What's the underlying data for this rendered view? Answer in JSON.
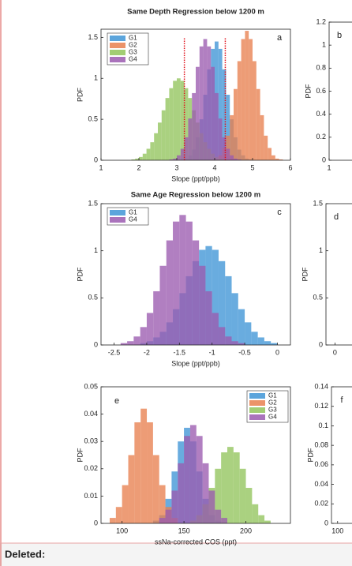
{
  "chart_data": [
    {
      "type": "histogram",
      "title": "Same Depth Regression below 1200 m",
      "panel_label": "a",
      "xlabel": "Slope (ppt/ppb)",
      "ylabel": "PDF",
      "xlim": [
        1,
        6
      ],
      "ylim": [
        0,
        1.6
      ],
      "xticks": [
        1,
        2,
        3,
        4,
        5,
        6
      ],
      "yticks": [
        0,
        0.5,
        1,
        1.5
      ],
      "legend": "northwest",
      "vlines": [
        3.2,
        4.28
      ],
      "vline_color": "#e0101a",
      "bins": [
        1,
        1.1,
        1.2,
        1.3,
        1.4,
        1.5,
        1.6,
        1.7,
        1.8,
        1.9,
        2,
        2.1,
        2.2,
        2.3,
        2.4,
        2.5,
        2.6,
        2.7,
        2.8,
        2.9,
        3,
        3.1,
        3.2,
        3.3,
        3.4,
        3.5,
        3.6,
        3.7,
        3.8,
        3.9,
        4,
        4.1,
        4.2,
        4.3,
        4.4,
        4.5,
        4.6,
        4.7,
        4.8,
        4.9,
        5,
        5.1,
        5.2,
        5.3,
        5.4,
        5.5,
        5.6,
        5.7,
        5.8,
        5.9,
        6
      ],
      "series": [
        {
          "name": "G1",
          "color": "#3f95d6",
          "values": [
            0,
            0,
            0,
            0,
            0,
            0,
            0,
            0,
            0,
            0,
            0,
            0,
            0,
            0,
            0,
            0,
            0,
            0,
            0,
            0,
            0,
            0.01,
            0.02,
            0.06,
            0.13,
            0.28,
            0.5,
            0.8,
            1.11,
            1.36,
            1.45,
            1.36,
            1.11,
            0.8,
            0.5,
            0.28,
            0.13,
            0.06,
            0.02,
            0.01,
            0,
            0,
            0,
            0,
            0,
            0,
            0,
            0,
            0,
            0
          ]
        },
        {
          "name": "G2",
          "color": "#e8804f",
          "values": [
            0,
            0,
            0,
            0,
            0,
            0,
            0,
            0,
            0,
            0,
            0,
            0,
            0,
            0,
            0,
            0,
            0,
            0,
            0,
            0,
            0,
            0,
            0,
            0,
            0,
            0,
            0,
            0,
            0,
            0.01,
            0.02,
            0.06,
            0.15,
            0.3,
            0.55,
            0.87,
            1.21,
            1.48,
            1.58,
            1.48,
            1.21,
            0.87,
            0.55,
            0.3,
            0.15,
            0.06,
            0.02,
            0.01,
            0,
            0
          ]
        },
        {
          "name": "G3",
          "color": "#92c45c",
          "values": [
            0,
            0,
            0,
            0,
            0,
            0,
            0,
            0,
            0.01,
            0.02,
            0.04,
            0.08,
            0.14,
            0.22,
            0.33,
            0.46,
            0.61,
            0.76,
            0.88,
            0.97,
            1,
            0.97,
            0.88,
            0.76,
            0.61,
            0.46,
            0.33,
            0.22,
            0.14,
            0.08,
            0.04,
            0.02,
            0.01,
            0,
            0,
            0,
            0,
            0,
            0,
            0,
            0,
            0,
            0,
            0,
            0,
            0,
            0,
            0,
            0,
            0
          ]
        },
        {
          "name": "G4",
          "color": "#9b5bb0",
          "values": [
            0,
            0,
            0,
            0,
            0,
            0,
            0,
            0,
            0,
            0,
            0,
            0,
            0,
            0,
            0,
            0,
            0,
            0,
            0.01,
            0.02,
            0.06,
            0.14,
            0.28,
            0.51,
            0.82,
            1.14,
            1.39,
            1.48,
            1.39,
            1.14,
            0.82,
            0.51,
            0.28,
            0.14,
            0.06,
            0.02,
            0.01,
            0,
            0,
            0,
            0,
            0,
            0,
            0,
            0,
            0,
            0,
            0,
            0,
            0
          ]
        }
      ]
    },
    {
      "type": "histogram",
      "panel_label": "b",
      "ylabel": "PDF",
      "xlim": [
        1,
        6
      ],
      "ylim": [
        0,
        1.2
      ],
      "xticks": [
        1
      ],
      "yticks": [
        0,
        0.2,
        0.4,
        0.6,
        0.8,
        1,
        1.2
      ]
    },
    {
      "type": "histogram",
      "title": "Same Age Regression below 1200 m",
      "panel_label": "c",
      "xlabel": "Slope (ppt/ppb)",
      "ylabel": "PDF",
      "xlim": [
        -2.7,
        0.2
      ],
      "ylim": [
        0,
        1.5
      ],
      "xticks": [
        -2.5,
        -2,
        -1.5,
        -1,
        -0.5,
        0
      ],
      "yticks": [
        0,
        0.5,
        1,
        1.5
      ],
      "legend": "northwest",
      "bins": [
        -2.7,
        -2.6,
        -2.5,
        -2.4,
        -2.3,
        -2.2,
        -2.1,
        -2,
        -1.9,
        -1.8,
        -1.7,
        -1.6,
        -1.5,
        -1.4,
        -1.3,
        -1.2,
        -1.1,
        -1,
        -0.9,
        -0.8,
        -0.7,
        -0.6,
        -0.5,
        -0.4,
        -0.3,
        -0.2,
        -0.1,
        0,
        0.1,
        0.2
      ],
      "series": [
        {
          "name": "G1",
          "color": "#3f95d6",
          "values": [
            0,
            0,
            0,
            0,
            0,
            0,
            0.02,
            0.04,
            0.08,
            0.14,
            0.24,
            0.38,
            0.55,
            0.73,
            0.89,
            1.01,
            1.05,
            1.01,
            0.89,
            0.73,
            0.55,
            0.38,
            0.24,
            0.14,
            0.08,
            0.04,
            0.02,
            0,
            0
          ]
        },
        {
          "name": "G4",
          "color": "#9b5bb0",
          "values": [
            0,
            0,
            0,
            0.02,
            0.04,
            0.09,
            0.19,
            0.34,
            0.57,
            0.84,
            1.11,
            1.31,
            1.38,
            1.31,
            1.11,
            0.84,
            0.57,
            0.34,
            0.19,
            0.09,
            0.04,
            0.02,
            0,
            0,
            0,
            0,
            0,
            0,
            0
          ]
        }
      ]
    },
    {
      "type": "histogram",
      "panel_label": "d",
      "ylabel": "PDF",
      "xlim": [
        -0.1,
        2
      ],
      "ylim": [
        0,
        1.5
      ],
      "xticks": [
        0
      ],
      "yticks": [
        0,
        0.5,
        1,
        1.5
      ]
    },
    {
      "type": "histogram",
      "panel_label": "e",
      "xlabel": "ssNa-corrected COS (ppt)",
      "ylabel": "PDF",
      "xlim": [
        83,
        236
      ],
      "ylim": [
        0,
        0.05
      ],
      "xticks": [
        100,
        150,
        200
      ],
      "yticks": [
        0,
        0.01,
        0.02,
        0.03,
        0.04,
        0.05
      ],
      "legend": "northeast",
      "bins": [
        85,
        90,
        95,
        100,
        105,
        110,
        115,
        120,
        125,
        130,
        135,
        140,
        145,
        150,
        155,
        160,
        165,
        170,
        175,
        180,
        185,
        190,
        195,
        200,
        205,
        210,
        215,
        220,
        225,
        230,
        235
      ],
      "series": [
        {
          "name": "G1",
          "color": "#3f95d6",
          "values": [
            0,
            0,
            0,
            0,
            0,
            0,
            0,
            0,
            0.001,
            0.003,
            0.009,
            0.019,
            0.03,
            0.035,
            0.03,
            0.019,
            0.009,
            0.003,
            0.001,
            0,
            0,
            0,
            0,
            0,
            0,
            0,
            0,
            0,
            0,
            0
          ]
        },
        {
          "name": "G2",
          "color": "#e8804f",
          "values": [
            0,
            0.002,
            0.006,
            0.014,
            0.025,
            0.037,
            0.042,
            0.037,
            0.025,
            0.014,
            0.006,
            0.002,
            0,
            0,
            0,
            0,
            0,
            0,
            0,
            0,
            0,
            0,
            0,
            0,
            0,
            0,
            0,
            0,
            0,
            0
          ]
        },
        {
          "name": "G3",
          "color": "#92c45c",
          "values": [
            0,
            0,
            0,
            0,
            0,
            0,
            0,
            0,
            0,
            0,
            0,
            0,
            0,
            0,
            0.001,
            0.003,
            0.007,
            0.013,
            0.02,
            0.026,
            0.028,
            0.026,
            0.02,
            0.013,
            0.007,
            0.003,
            0.001,
            0,
            0,
            0
          ]
        },
        {
          "name": "G4",
          "color": "#9b5bb0",
          "values": [
            0,
            0,
            0,
            0,
            0,
            0,
            0,
            0,
            0,
            0.002,
            0.005,
            0.012,
            0.022,
            0.032,
            0.036,
            0.032,
            0.022,
            0.012,
            0.005,
            0.002,
            0,
            0,
            0,
            0,
            0,
            0,
            0,
            0,
            0,
            0
          ]
        }
      ]
    },
    {
      "type": "histogram",
      "panel_label": "f",
      "ylabel": "PDF",
      "xlim": [
        95,
        250
      ],
      "ylim": [
        0,
        0.14
      ],
      "xticks": [
        100
      ],
      "yticks": [
        0,
        0.02,
        0.04,
        0.06,
        0.08,
        0.1,
        0.12,
        0.14
      ]
    }
  ],
  "document": {
    "deleted_label": "Deleted:"
  }
}
